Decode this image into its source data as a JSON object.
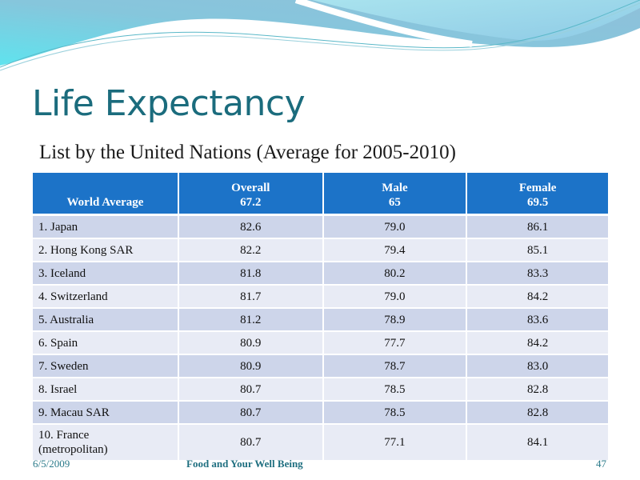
{
  "slide": {
    "title": "Life Expectancy",
    "subtitle": "List by the United Nations (Average for 2005-2010)"
  },
  "table": {
    "headers": [
      {
        "label": "World Average",
        "value": ""
      },
      {
        "label": "Overall",
        "value": "67.2"
      },
      {
        "label": "Male",
        "value": "65"
      },
      {
        "label": "Female",
        "value": "69.5"
      }
    ],
    "rows": [
      {
        "country": "1.  Japan",
        "overall": "82.6",
        "male": "79.0",
        "female": "86.1"
      },
      {
        "country": "2. Hong Kong SAR",
        "overall": "82.2",
        "male": "79.4",
        "female": "85.1"
      },
      {
        "country": "3. Iceland",
        "overall": "81.8",
        "male": "80.2",
        "female": "83.3"
      },
      {
        "country": "4. Switzerland",
        "overall": "81.7",
        "male": "79.0",
        "female": "84.2"
      },
      {
        "country": "5. Australia",
        "overall": "81.2",
        "male": "78.9",
        "female": "83.6"
      },
      {
        "country": "6. Spain",
        "overall": "80.9",
        "male": "77.7",
        "female": "84.2"
      },
      {
        "country": "7. Sweden",
        "overall": "80.9",
        "male": "78.7",
        "female": "83.0"
      },
      {
        "country": "8. Israel",
        "overall": "80.7",
        "male": "78.5",
        "female": "82.8"
      },
      {
        "country": "9. Macau SAR",
        "overall": "80.7",
        "male": "78.5",
        "female": "82.8"
      },
      {
        "country": "10. France",
        "country_line2": "(metropolitan)",
        "overall": "80.7",
        "male": "77.1",
        "female": "84.1"
      }
    ]
  },
  "footer": {
    "date": "6/5/2009",
    "center": "Food and Your Well Being",
    "page": "47"
  },
  "colors": {
    "header_bg": "#1c73c8",
    "row_odd": "#cdd5ea",
    "row_even": "#e8ebf5",
    "title": "#1b6c7d"
  }
}
